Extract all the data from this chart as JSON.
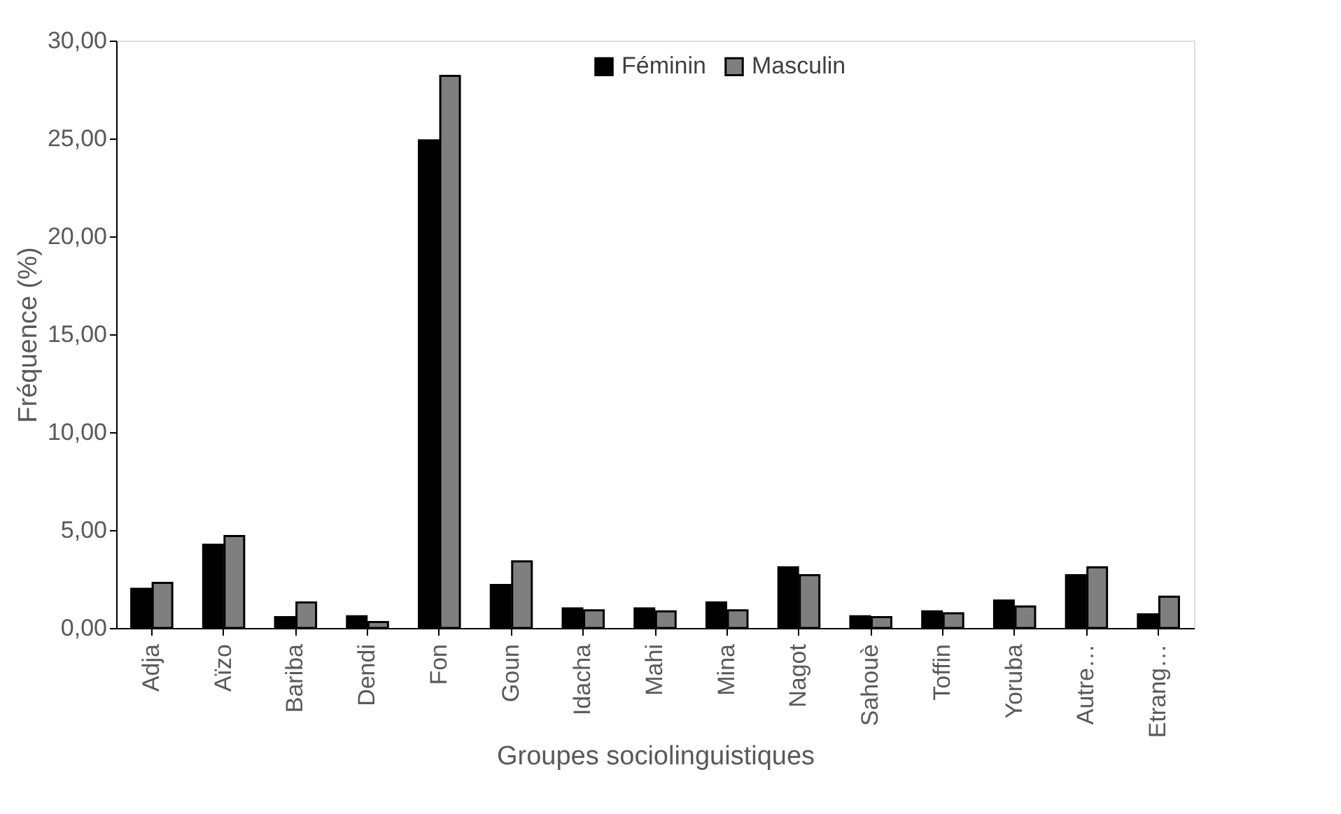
{
  "chart_data": {
    "type": "bar",
    "xlabel": "Groupes sociolinguistiques",
    "ylabel": "Fréquence (%)",
    "categories": [
      "Adja",
      "Aïzo",
      "Bariba",
      "Dendi",
      "Fon",
      "Goun",
      "Idacha",
      "Mahi",
      "Mina",
      "Nagot",
      "Sahouè",
      "Toffin",
      "Yoruba",
      "Autre…",
      "Etrang…"
    ],
    "series": [
      {
        "name": "Féminin",
        "color": "#000000",
        "values": [
          2.0,
          4.25,
          0.55,
          0.6,
          24.9,
          2.2,
          1.0,
          1.0,
          1.3,
          3.1,
          0.6,
          0.85,
          1.4,
          2.7,
          0.7
        ]
      },
      {
        "name": "Masculin",
        "color": "#7f7f7f",
        "values": [
          2.3,
          4.7,
          1.3,
          0.3,
          28.2,
          3.4,
          0.9,
          0.85,
          0.9,
          2.7,
          0.55,
          0.75,
          1.1,
          3.1,
          1.6
        ]
      }
    ],
    "ylim": [
      0,
      30
    ],
    "yticks": [
      {
        "value": 0,
        "label": "0,00"
      },
      {
        "value": 5,
        "label": "5,00"
      },
      {
        "value": 10,
        "label": "10,00"
      },
      {
        "value": 15,
        "label": "15,00"
      },
      {
        "value": 20,
        "label": "20,00"
      },
      {
        "value": 25,
        "label": "25,00"
      },
      {
        "value": 30,
        "label": "30,00"
      }
    ],
    "grid": false,
    "legend": "top"
  }
}
